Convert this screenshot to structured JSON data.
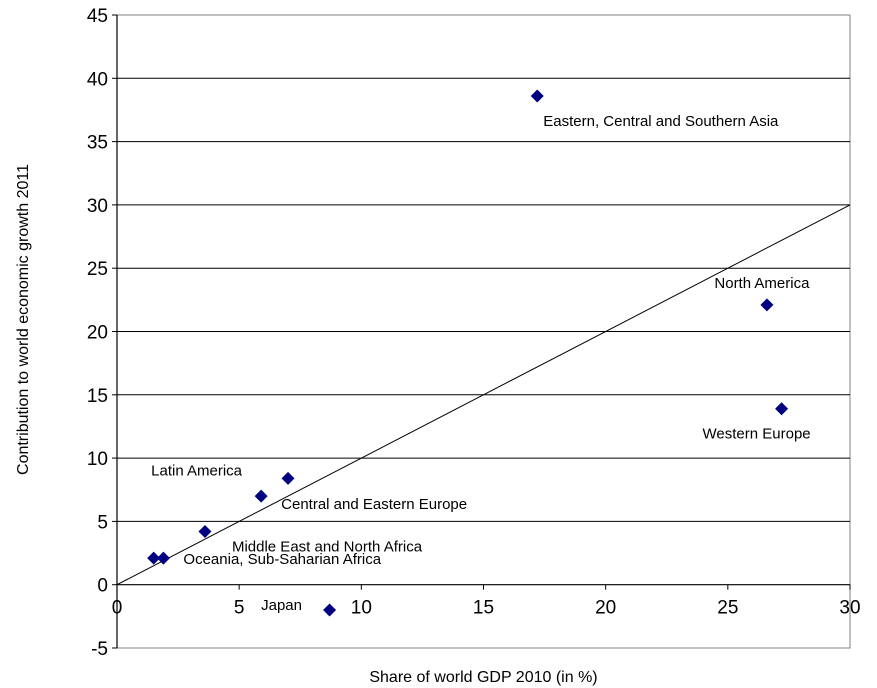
{
  "chart_data": {
    "type": "scatter",
    "title": "",
    "xlabel": "Share of world GDP 2010 (in %)",
    "ylabel": "Contribution to world economic growth 2011",
    "xlim": [
      0,
      30
    ],
    "ylim": [
      -5,
      45
    ],
    "x_ticks": [
      0,
      5,
      10,
      15,
      20,
      25,
      30
    ],
    "y_ticks": [
      -5,
      0,
      5,
      10,
      15,
      20,
      25,
      30,
      35,
      40,
      45
    ],
    "grid": "horizontal",
    "legend": "none",
    "marker": "diamond",
    "marker_color": "#000080",
    "reference_line": {
      "from": [
        0,
        0
      ],
      "to": [
        30,
        30
      ]
    },
    "points": [
      {
        "x": 17.2,
        "y": 38.6,
        "label": "Eastern, Central and Southern Asia"
      },
      {
        "x": 26.6,
        "y": 22.1,
        "label": "North America"
      },
      {
        "x": 27.2,
        "y": 13.9,
        "label": "Western Europe"
      },
      {
        "x": 7.0,
        "y": 8.4,
        "label": "Latin America"
      },
      {
        "x": 5.9,
        "y": 7.0,
        "label": "Central and Eastern Europe"
      },
      {
        "x": 3.6,
        "y": 4.2,
        "label": "Middle East and North Africa"
      },
      {
        "x": 1.9,
        "y": 2.1,
        "label": "Oceania, Sub-Saharian Africa"
      },
      {
        "x": 1.5,
        "y": 2.1,
        "label": ""
      },
      {
        "x": 8.7,
        "y": -2.0,
        "label": "Japan"
      }
    ]
  }
}
